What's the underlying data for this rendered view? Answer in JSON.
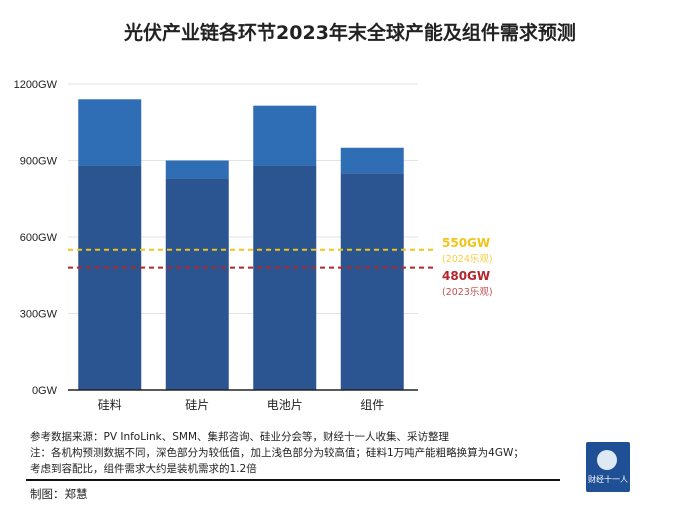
{
  "chart_data": {
    "type": "bar",
    "title": "光伏产业链各环节2023年末全球产能及组件需求预测",
    "categories": [
      "硅料",
      "硅片",
      "电池片",
      "组件"
    ],
    "series": [
      {
        "name": "较低值",
        "values": [
          880,
          830,
          880,
          850
        ]
      },
      {
        "name": "较高值",
        "values": [
          1140,
          900,
          1115,
          950
        ]
      }
    ],
    "yticks": [
      "0GW",
      "300GW",
      "600GW",
      "900GW",
      "1200GW"
    ],
    "ytick_values": [
      0,
      300,
      600,
      900,
      1200
    ],
    "ylim": [
      0,
      1200
    ],
    "grid": true,
    "reference_lines": [
      {
        "value": 550,
        "label": "550GW",
        "sublabel": "(2024乐观)",
        "color": "#f0c419"
      },
      {
        "value": 480,
        "label": "480GW",
        "sublabel": "(2023乐观)",
        "color": "#b3262b"
      }
    ],
    "colors": {
      "low": "#2b5590",
      "high": "#2f6db4",
      "grid": "#e3e3e3",
      "axis": "#222222"
    }
  },
  "footer": {
    "source": "参考数据来源：PV InfoLink、SMM、集邦咨询、硅业分会等，财经十一人收集、采访整理",
    "note1": "注：各机构预测数据不同，深色部分为较低值，加上浅色部分为较高值；硅料1万吨产能粗略换算为4GW；",
    "note2": "考虑到容配比，组件需求大约是装机需求的1.2倍",
    "author": "制图：郑慧",
    "logo_text": "财经十一人"
  }
}
